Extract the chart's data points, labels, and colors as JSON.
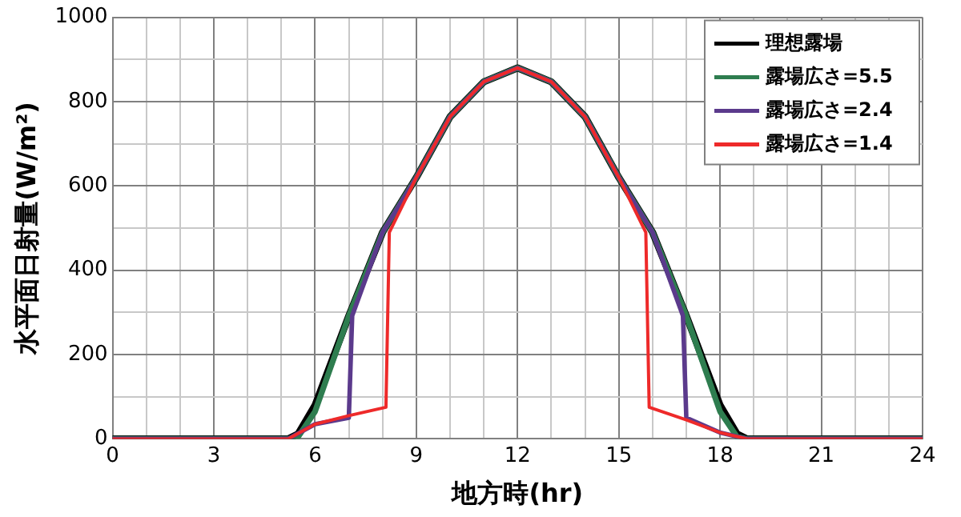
{
  "chart_data": {
    "type": "line",
    "xlabel": "地方時(hr)",
    "ylabel": "水平面日射量(W/m²)",
    "xlim": [
      0,
      24
    ],
    "xticks": [
      0,
      {
        "value": 1,
        "label": null
      },
      {
        "value": 2,
        "label": null
      },
      3,
      {
        "value": 4,
        "label": null
      },
      {
        "value": 5,
        "label": null
      },
      6,
      {
        "value": 7,
        "label": null
      },
      {
        "value": 8,
        "label": null
      },
      9,
      {
        "value": 10,
        "label": null
      },
      {
        "value": 11,
        "label": null
      },
      12,
      {
        "value": 13,
        "label": null
      },
      {
        "value": 14,
        "label": null
      },
      15,
      {
        "value": 16,
        "label": null
      },
      {
        "value": 17,
        "label": null
      },
      18,
      {
        "value": 19,
        "label": null
      },
      {
        "value": 20,
        "label": null
      },
      21,
      {
        "value": 22,
        "label": null
      },
      {
        "value": 23,
        "label": null
      },
      24
    ],
    "ylim": [
      0,
      1000
    ],
    "yticks": [
      0,
      {
        "value": 100,
        "label": null
      },
      200,
      {
        "value": 300,
        "label": null
      },
      400,
      {
        "value": 500,
        "label": null
      },
      600,
      {
        "value": 700,
        "label": null
      },
      800,
      {
        "value": 900,
        "label": null
      },
      1000
    ],
    "grid": true,
    "legend": "top right",
    "marker": "none",
    "line_style": "solid",
    "series": [
      {
        "name": "理想露場",
        "color": "#000000",
        "x": [
          0,
          5.2,
          5.5,
          6,
          7,
          8,
          9,
          10,
          11,
          12,
          13,
          14,
          15,
          16,
          17,
          18,
          18.5,
          18.8,
          24
        ],
        "values": [
          0,
          0,
          12,
          80,
          292,
          490,
          620,
          764,
          847,
          880,
          847,
          764,
          620,
          490,
          292,
          80,
          12,
          0,
          0
        ]
      },
      {
        "name": "露場広さ=5.5",
        "color": "#2e7d4f",
        "x": [
          0,
          5.2,
          5.5,
          6,
          7,
          8,
          9,
          10,
          11,
          12,
          13,
          14,
          15,
          16,
          17,
          18,
          18.5,
          18.8,
          24
        ],
        "values": [
          0,
          0,
          5,
          65,
          292,
          490,
          620,
          764,
          847,
          880,
          847,
          764,
          620,
          490,
          292,
          65,
          5,
          0,
          0
        ]
      },
      {
        "name": "露場広さ=2.4",
        "color": "#5b3a8c",
        "x": [
          0,
          5.2,
          6,
          7,
          7.1,
          8,
          9,
          10,
          11,
          12,
          13,
          14,
          15,
          16,
          16.9,
          17,
          18,
          18.8,
          24
        ],
        "values": [
          0,
          0,
          35,
          50,
          292,
          490,
          620,
          764,
          847,
          880,
          847,
          764,
          620,
          490,
          292,
          50,
          15,
          0,
          0
        ]
      },
      {
        "name": "露場広さ=1.4",
        "color": "#ee2a2a",
        "x": [
          0,
          5.2,
          6,
          7,
          8.1,
          8.2,
          9,
          10,
          11,
          12,
          13,
          14,
          15,
          15.8,
          15.9,
          17,
          18,
          18.8,
          24
        ],
        "values": [
          0,
          0,
          35,
          55,
          75,
          490,
          620,
          764,
          847,
          880,
          847,
          764,
          620,
          490,
          75,
          45,
          15,
          0,
          0
        ]
      }
    ]
  }
}
